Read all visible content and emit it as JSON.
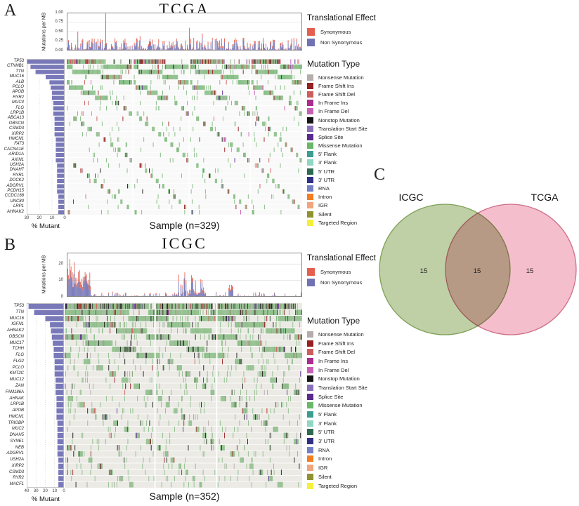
{
  "chart_data": [
    {
      "type": "heatmap",
      "subtype": "oncoplot-waterfall",
      "panel_label": "A",
      "title": "TCGA",
      "sample_label": "Sample (n=329)",
      "n_samples": 329,
      "tmb_axis": {
        "label": "Mutations per MB",
        "ymax": 1.0,
        "ticks": [
          1.0,
          0.75,
          0.5,
          0.25,
          0.0
        ],
        "tick_labels": [
          "1.00",
          "0.75",
          "0.50",
          "0.25",
          "0.00"
        ]
      },
      "pct_axis": {
        "label": "% Mutant",
        "max": 30,
        "ticks": [
          30,
          20,
          10,
          0
        ]
      },
      "genes": [
        {
          "name": "TP53",
          "pct": 30
        },
        {
          "name": "CTNNB1",
          "pct": 27
        },
        {
          "name": "TTN",
          "pct": 23
        },
        {
          "name": "MUC16",
          "pct": 15
        },
        {
          "name": "ALB",
          "pct": 12
        },
        {
          "name": "PCLO",
          "pct": 11
        },
        {
          "name": "APOB",
          "pct": 10
        },
        {
          "name": "RYR2",
          "pct": 10
        },
        {
          "name": "MUC4",
          "pct": 9
        },
        {
          "name": "FLG",
          "pct": 9
        },
        {
          "name": "LRP1B",
          "pct": 9
        },
        {
          "name": "ABCA13",
          "pct": 8
        },
        {
          "name": "OBSCN",
          "pct": 8
        },
        {
          "name": "CSMD3",
          "pct": 8
        },
        {
          "name": "XIRP2",
          "pct": 8
        },
        {
          "name": "HMCN1",
          "pct": 7
        },
        {
          "name": "FAT3",
          "pct": 7
        },
        {
          "name": "CACNA1E",
          "pct": 7
        },
        {
          "name": "ARID1A",
          "pct": 7
        },
        {
          "name": "AXIN1",
          "pct": 7
        },
        {
          "name": "USH2A",
          "pct": 6
        },
        {
          "name": "DNAH7",
          "pct": 6
        },
        {
          "name": "RYR1",
          "pct": 6
        },
        {
          "name": "DOCK2",
          "pct": 6
        },
        {
          "name": "ADGRV1",
          "pct": 6
        },
        {
          "name": "PCDH15",
          "pct": 6
        },
        {
          "name": "CCDC168",
          "pct": 5
        },
        {
          "name": "UNC80",
          "pct": 5
        },
        {
          "name": "LRP1",
          "pct": 5
        },
        {
          "name": "AHNAK2",
          "pct": 5
        }
      ]
    },
    {
      "type": "heatmap",
      "subtype": "oncoplot-waterfall",
      "panel_label": "B",
      "title": "ICGC",
      "sample_label": "Sample (n=352)",
      "n_samples": 352,
      "tmb_axis": {
        "label": "Mutations per MB",
        "ymax": 27,
        "ticks": [
          20,
          10,
          0
        ],
        "tick_labels": [
          "20",
          "10",
          "0"
        ]
      },
      "pct_axis": {
        "label": "% Mutant",
        "max": 40,
        "ticks": [
          40,
          30,
          20,
          10,
          0
        ]
      },
      "genes": [
        {
          "name": "TP53",
          "pct": 38
        },
        {
          "name": "TTN",
          "pct": 32
        },
        {
          "name": "MUC16",
          "pct": 20
        },
        {
          "name": "IGFN1",
          "pct": 15
        },
        {
          "name": "AHNAK2",
          "pct": 14
        },
        {
          "name": "OBSCN",
          "pct": 13
        },
        {
          "name": "MUC17",
          "pct": 12
        },
        {
          "name": "TCHH",
          "pct": 11
        },
        {
          "name": "FLG",
          "pct": 11
        },
        {
          "name": "FLG2",
          "pct": 10
        },
        {
          "name": "PCLO",
          "pct": 10
        },
        {
          "name": "KMT2C",
          "pct": 10
        },
        {
          "name": "MUC12",
          "pct": 9
        },
        {
          "name": "ZAN",
          "pct": 9
        },
        {
          "name": "FAM186A",
          "pct": 9
        },
        {
          "name": "AHNAK",
          "pct": 8
        },
        {
          "name": "LRP1B",
          "pct": 8
        },
        {
          "name": "APOB",
          "pct": 8
        },
        {
          "name": "HMCN1",
          "pct": 8
        },
        {
          "name": "TRIOBP",
          "pct": 7
        },
        {
          "name": "MUC2",
          "pct": 7
        },
        {
          "name": "DNAH5",
          "pct": 7
        },
        {
          "name": "SYNE1",
          "pct": 7
        },
        {
          "name": "NEB",
          "pct": 7
        },
        {
          "name": "ADGRV1",
          "pct": 7
        },
        {
          "name": "USH2A",
          "pct": 6
        },
        {
          "name": "XIRP2",
          "pct": 6
        },
        {
          "name": "CSMD3",
          "pct": 6
        },
        {
          "name": "RYR2",
          "pct": 6
        },
        {
          "name": "MACF1",
          "pct": 6
        }
      ]
    },
    {
      "type": "venn",
      "panel_label": "C",
      "sets": [
        {
          "name": "ICGC",
          "count": "15",
          "fill": "#b4c796",
          "stroke": "#7fa156"
        },
        {
          "name": "TCGA",
          "count": "15",
          "fill": "#f2b3c3",
          "stroke": "#cf6f88"
        }
      ],
      "overlap": "15"
    }
  ],
  "legends": {
    "translational_effect": {
      "title": "Translational Effect",
      "items": [
        {
          "label": "Synonymous",
          "color": "#e4604e"
        },
        {
          "label": "Non Synonymous",
          "color": "#7172b4"
        }
      ]
    },
    "mutation_type": {
      "title": "Mutation Type",
      "items": [
        {
          "label": "Nonsense Mutation",
          "color": "#b5acac"
        },
        {
          "label": "Frame Shift Ins",
          "color": "#961f1f"
        },
        {
          "label": "Frame Shift Del",
          "color": "#cd5e5e"
        },
        {
          "label": "In Frame Ins",
          "color": "#aa2c8c"
        },
        {
          "label": "In Frame Del",
          "color": "#c760b4"
        },
        {
          "label": "Nonstop Mutation",
          "color": "#161616"
        },
        {
          "label": "Translation Start Site",
          "color": "#8871b8"
        },
        {
          "label": "Splice Site",
          "color": "#59298c"
        },
        {
          "label": "Missense Mutation",
          "color": "#68b868"
        },
        {
          "label": "5' Flank",
          "color": "#3a9d8f"
        },
        {
          "label": "3' Flank",
          "color": "#8ed7c2"
        },
        {
          "label": "5' UTR",
          "color": "#2c6b52"
        },
        {
          "label": "3' UTR",
          "color": "#2f2f86"
        },
        {
          "label": "RNA",
          "color": "#7480c4"
        },
        {
          "label": "Intron",
          "color": "#f47d21"
        },
        {
          "label": "IGR",
          "color": "#f2a47e"
        },
        {
          "label": "Silent",
          "color": "#8f922f"
        },
        {
          "label": "Targeted Region",
          "color": "#f6ef38"
        }
      ]
    }
  },
  "colors": {
    "gene_bar": "#7979b9",
    "onco_bg_tcga": "#faf9f9",
    "onco_bg_icgc": "#ebeae5",
    "missense_cell_tcga": "#82bb80",
    "missense_cell_icgc": "#8cbd88"
  }
}
